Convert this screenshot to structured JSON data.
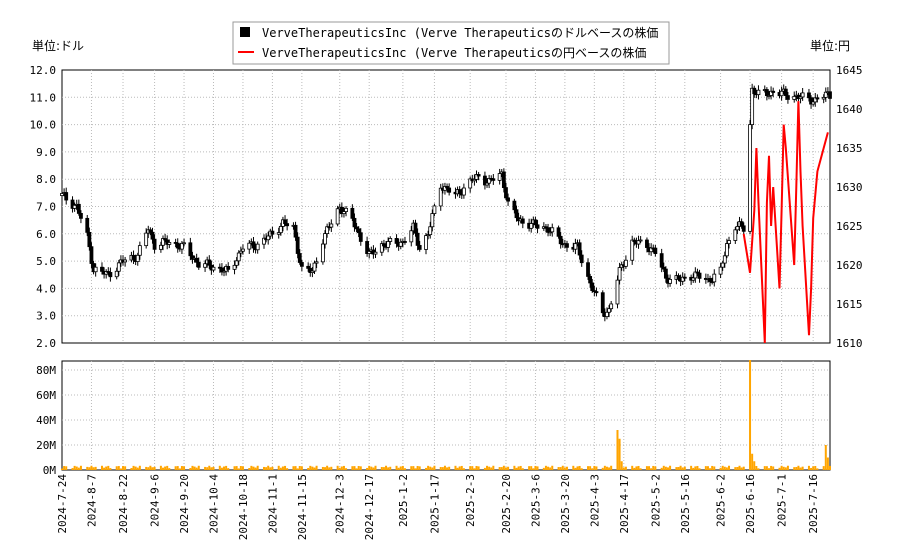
{
  "chart_data": [
    {
      "type": "candlestick",
      "legend": [
        {
          "label": "VerveTherapeuticsInc (Verve Therapeuticsのドルベースの株価",
          "color": "#000000",
          "marker": "square"
        },
        {
          "label": "VerveTherapeuticsInc (Verve Therapeuticsの円ベースの株価",
          "color": "#ff0000",
          "marker": "line"
        }
      ],
      "y_left_unit": "単位:ドル",
      "y_right_unit": "単位:円",
      "y_left_ticks": [
        "12.0",
        "11.0",
        "10.0",
        "9.0",
        "8.0",
        "7.0",
        "6.0",
        "5.0",
        "4.0",
        "3.0",
        "2.0"
      ],
      "y_right_ticks": [
        "1645",
        "1640",
        "1635",
        "1630",
        "1625",
        "1620",
        "1615",
        "1610"
      ],
      "ylim_left": [
        2.0,
        12.0
      ],
      "ylim_right": [
        1610,
        1645
      ],
      "series_usd_anchors": [
        [
          "2024-07-24",
          7.4
        ],
        [
          "2024-07-31",
          7.0
        ],
        [
          "2024-08-05",
          5.9
        ],
        [
          "2024-08-08",
          4.7
        ],
        [
          "2024-08-15",
          4.5
        ],
        [
          "2024-08-22",
          5.0
        ],
        [
          "2024-08-29",
          5.2
        ],
        [
          "2024-09-03",
          6.2
        ],
        [
          "2024-09-06",
          5.6
        ],
        [
          "2024-09-13",
          5.7
        ],
        [
          "2024-09-20",
          5.5
        ],
        [
          "2024-09-27",
          4.9
        ],
        [
          "2024-10-04",
          4.8
        ],
        [
          "2024-10-11",
          4.6
        ],
        [
          "2024-10-18",
          5.5
        ],
        [
          "2024-10-25",
          5.6
        ],
        [
          "2024-11-01",
          6.0
        ],
        [
          "2024-11-06",
          6.4
        ],
        [
          "2024-11-11",
          6.2
        ],
        [
          "2024-11-15",
          4.7
        ],
        [
          "2024-11-20",
          4.6
        ],
        [
          "2024-11-25",
          5.8
        ],
        [
          "2024-12-03",
          7.0
        ],
        [
          "2024-12-09",
          6.5
        ],
        [
          "2024-12-17",
          5.2
        ],
        [
          "2024-12-23",
          5.6
        ],
        [
          "2025-01-02",
          5.7
        ],
        [
          "2025-01-07",
          6.2
        ],
        [
          "2025-01-10",
          5.5
        ],
        [
          "2025-01-14",
          6.0
        ],
        [
          "2025-01-20",
          7.8
        ],
        [
          "2025-01-27",
          7.4
        ],
        [
          "2025-02-03",
          7.9
        ],
        [
          "2025-02-07",
          8.1
        ],
        [
          "2025-02-12",
          7.9
        ],
        [
          "2025-02-18",
          8.2
        ],
        [
          "2025-02-21",
          7.1
        ],
        [
          "2025-02-26",
          6.5
        ],
        [
          "2025-03-06",
          6.3
        ],
        [
          "2025-03-12",
          6.2
        ],
        [
          "2025-03-17",
          5.8
        ],
        [
          "2025-03-20",
          5.6
        ],
        [
          "2025-03-26",
          5.5
        ],
        [
          "2025-04-01",
          4.2
        ],
        [
          "2025-04-07",
          3.1
        ],
        [
          "2025-04-10",
          3.2
        ],
        [
          "2025-04-15",
          4.6
        ],
        [
          "2025-04-21",
          5.7
        ],
        [
          "2025-04-28",
          5.6
        ],
        [
          "2025-05-02",
          5.3
        ],
        [
          "2025-05-07",
          4.4
        ],
        [
          "2025-05-14",
          4.3
        ],
        [
          "2025-05-20",
          4.5
        ],
        [
          "2025-05-27",
          4.3
        ],
        [
          "2025-06-02",
          4.6
        ],
        [
          "2025-06-05",
          5.6
        ],
        [
          "2025-06-09",
          6.3
        ],
        [
          "2025-06-13",
          6.2
        ],
        [
          "2025-06-17",
          11.3
        ],
        [
          "2025-06-20",
          11.1
        ],
        [
          "2025-06-27",
          11.2
        ],
        [
          "2025-07-03",
          11.1
        ],
        [
          "2025-07-10",
          11.0
        ],
        [
          "2025-07-17",
          10.9
        ],
        [
          "2025-07-23",
          11.1
        ]
      ],
      "series_jpy": [
        [
          "2025-06-13",
          1624
        ],
        [
          "2025-06-16",
          1619
        ],
        [
          "2025-06-18",
          1627
        ],
        [
          "2025-06-19",
          1635
        ],
        [
          "2025-06-20",
          1628
        ],
        [
          "2025-06-23",
          1610
        ],
        [
          "2025-06-24",
          1628
        ],
        [
          "2025-06-25",
          1634
        ],
        [
          "2025-06-26",
          1625
        ],
        [
          "2025-06-27",
          1630
        ],
        [
          "2025-06-30",
          1617
        ],
        [
          "2025-07-01",
          1627
        ],
        [
          "2025-07-02",
          1638
        ],
        [
          "2025-07-03",
          1635
        ],
        [
          "2025-07-07",
          1620
        ],
        [
          "2025-07-08",
          1630
        ],
        [
          "2025-07-09",
          1641
        ],
        [
          "2025-07-10",
          1632
        ],
        [
          "2025-07-11",
          1625
        ],
        [
          "2025-07-14",
          1611
        ],
        [
          "2025-07-15",
          1617
        ],
        [
          "2025-07-16",
          1626
        ],
        [
          "2025-07-18",
          1632
        ],
        [
          "2025-07-23",
          1637
        ]
      ]
    },
    {
      "type": "bar",
      "ylabel": "",
      "y_ticks": [
        "80M",
        "60M",
        "40M",
        "20M",
        "0M"
      ],
      "ylim": [
        0,
        80000000
      ],
      "bar_color": "#ffa500",
      "spikes": [
        [
          "2025-04-14",
          32000000
        ],
        [
          "2025-04-15",
          25000000
        ],
        [
          "2025-04-16",
          7000000
        ],
        [
          "2025-06-16",
          88000000
        ],
        [
          "2025-06-17",
          13000000
        ],
        [
          "2025-06-18",
          7000000
        ],
        [
          "2025-07-22",
          20000000
        ],
        [
          "2025-07-23",
          10000000
        ]
      ],
      "baseline_volume": 2000000
    }
  ],
  "x_axis": {
    "start": "2024-07-24",
    "end": "2025-07-24",
    "tick_labels": [
      "2024-7-24",
      "2024-8-7",
      "2024-8-22",
      "2024-9-6",
      "2024-9-20",
      "2024-10-4",
      "2024-10-18",
      "2024-11-1",
      "2024-11-15",
      "2024-12-3",
      "2024-12-17",
      "2025-1-2",
      "2025-1-17",
      "2025-2-3",
      "2025-2-20",
      "2025-3-6",
      "2025-3-20",
      "2025-4-3",
      "2025-4-17",
      "2025-5-2",
      "2025-5-16",
      "2025-6-2",
      "2025-6-16",
      "2025-7-1",
      "2025-7-16"
    ]
  }
}
